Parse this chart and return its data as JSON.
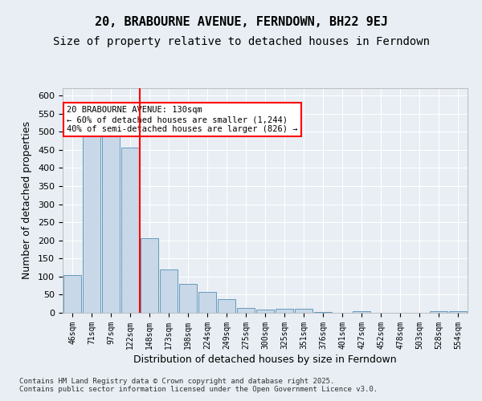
{
  "title1": "20, BRABOURNE AVENUE, FERNDOWN, BH22 9EJ",
  "title2": "Size of property relative to detached houses in Ferndown",
  "xlabel": "Distribution of detached houses by size in Ferndown",
  "ylabel": "Number of detached properties",
  "categories": [
    "46sqm",
    "71sqm",
    "97sqm",
    "122sqm",
    "148sqm",
    "173sqm",
    "198sqm",
    "224sqm",
    "249sqm",
    "275sqm",
    "300sqm",
    "325sqm",
    "351sqm",
    "376sqm",
    "401sqm",
    "427sqm",
    "452sqm",
    "478sqm",
    "503sqm",
    "528sqm",
    "554sqm"
  ],
  "values": [
    105,
    490,
    490,
    457,
    205,
    120,
    80,
    57,
    38,
    13,
    8,
    10,
    10,
    3,
    0,
    5,
    0,
    0,
    0,
    5,
    5
  ],
  "bar_color": "#c8d8e8",
  "bar_edge_color": "#6699bb",
  "red_line_index": 3,
  "annotation_text": "20 BRABOURNE AVENUE: 130sqm\n← 60% of detached houses are smaller (1,244)\n40% of semi-detached houses are larger (826) →",
  "ylim": [
    0,
    620
  ],
  "yticks": [
    0,
    50,
    100,
    150,
    200,
    250,
    300,
    350,
    400,
    450,
    500,
    550,
    600
  ],
  "background_color": "#e8eef4",
  "plot_bg_color": "#e8eef4",
  "footer": "Contains HM Land Registry data © Crown copyright and database right 2025.\nContains public sector information licensed under the Open Government Licence v3.0.",
  "title1_fontsize": 11,
  "title2_fontsize": 10,
  "xlabel_fontsize": 9,
  "ylabel_fontsize": 9
}
